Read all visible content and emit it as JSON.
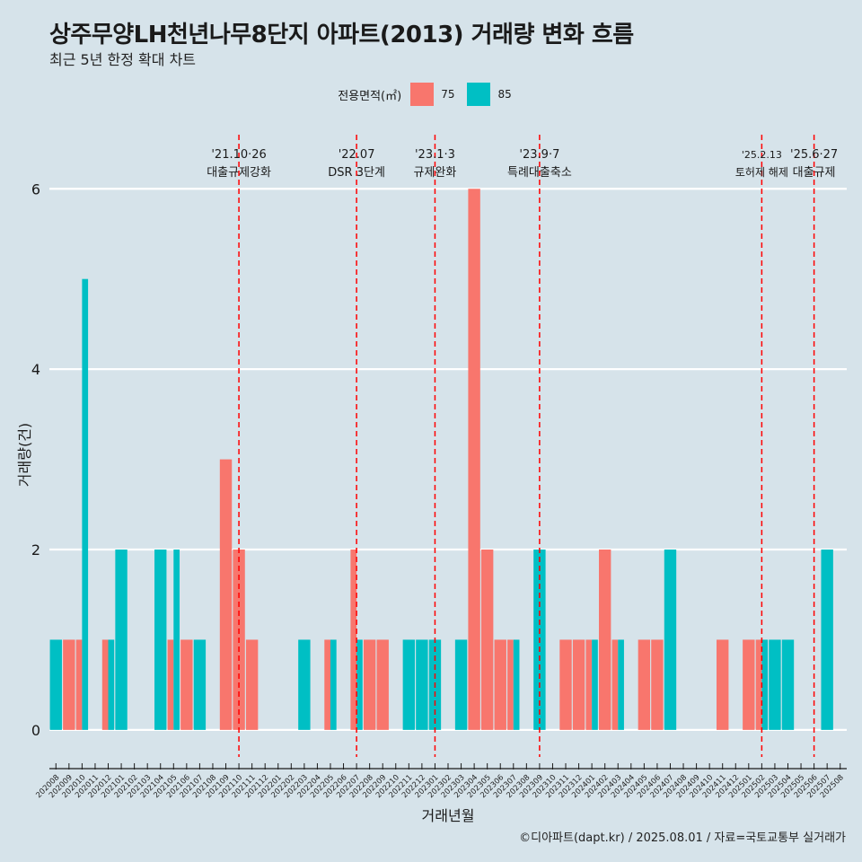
{
  "title": "상주무양LH천년나무8단지 아파트(2013) 거래량 변화 흐름",
  "subtitle": "최근 5년 한정 확대 차트",
  "caption": "©디아파트(dapt.kr) / 2025.08.01 / 자료=국토교통부 실거래가",
  "legend": {
    "title": "전용면적(㎡)",
    "items": [
      {
        "label": "75",
        "color": "#f8766d"
      },
      {
        "label": "85",
        "color": "#00bfc4"
      }
    ]
  },
  "chart_data": {
    "type": "bar",
    "title": "상주무양LH천년나무8단지 아파트(2013) 거래량 변화 흐름",
    "xlabel": "거래년월",
    "ylabel": "거래량(건)",
    "ylim": [
      -0.3,
      6.6
    ],
    "yticks": [
      0,
      2,
      4,
      6
    ],
    "grid": true,
    "legend_position": "top",
    "categories": [
      "202008",
      "202009",
      "202010",
      "202011",
      "202012",
      "202101",
      "202102",
      "202103",
      "202104",
      "202105",
      "202106",
      "202107",
      "202108",
      "202109",
      "202110",
      "202111",
      "202112",
      "202201",
      "202202",
      "202203",
      "202204",
      "202205",
      "202206",
      "202207",
      "202208",
      "202209",
      "202210",
      "202211",
      "202212",
      "202301",
      "202302",
      "202303",
      "202304",
      "202305",
      "202306",
      "202307",
      "202308",
      "202309",
      "202310",
      "202311",
      "202312",
      "202401",
      "202402",
      "202403",
      "202404",
      "202405",
      "202406",
      "202407",
      "202408",
      "202409",
      "202410",
      "202411",
      "202412",
      "202501",
      "202502",
      "202503",
      "202504",
      "202505",
      "202506",
      "202507",
      "202508"
    ],
    "series": [
      {
        "name": "75",
        "color": "#f8766d",
        "values": [
          0,
          1,
          1,
          0,
          1,
          0,
          0,
          0,
          0,
          1,
          1,
          0,
          0,
          3,
          2,
          1,
          0,
          0,
          0,
          0,
          0,
          1,
          0,
          2,
          1,
          1,
          0,
          0,
          0,
          0,
          0,
          0,
          6,
          2,
          1,
          1,
          0,
          0,
          0,
          1,
          1,
          1,
          2,
          1,
          0,
          1,
          1,
          0,
          0,
          0,
          0,
          1,
          0,
          1,
          1,
          0,
          0,
          0,
          0,
          0,
          0
        ]
      },
      {
        "name": "85",
        "color": "#00bfc4",
        "values": [
          1,
          0,
          5,
          0,
          1,
          2,
          0,
          0,
          2,
          2,
          0,
          1,
          0,
          0,
          0,
          0,
          0,
          0,
          0,
          1,
          0,
          1,
          0,
          1,
          0,
          0,
          0,
          1,
          1,
          1,
          0,
          1,
          0,
          0,
          0,
          1,
          0,
          2,
          0,
          0,
          0,
          1,
          0,
          1,
          0,
          0,
          0,
          2,
          0,
          0,
          0,
          0,
          0,
          0,
          1,
          1,
          1,
          0,
          0,
          2,
          0
        ]
      }
    ],
    "events": [
      {
        "month": "202110",
        "date": "'21.10·26",
        "label": "대출규제강화"
      },
      {
        "month": "202207",
        "date": "'22.07",
        "label": "DSR 3단계"
      },
      {
        "month": "202301",
        "date": "'23.1·3",
        "label": "규제완화"
      },
      {
        "month": "202309",
        "date": "'23.9·7",
        "label": "특례대출축소"
      },
      {
        "month": "202502",
        "date": "'25.2.13",
        "label": "토허제 해제"
      },
      {
        "month": "202506",
        "date": "'25.6·27",
        "label": "대출규제"
      }
    ],
    "event_line_color": "#ff0000"
  }
}
